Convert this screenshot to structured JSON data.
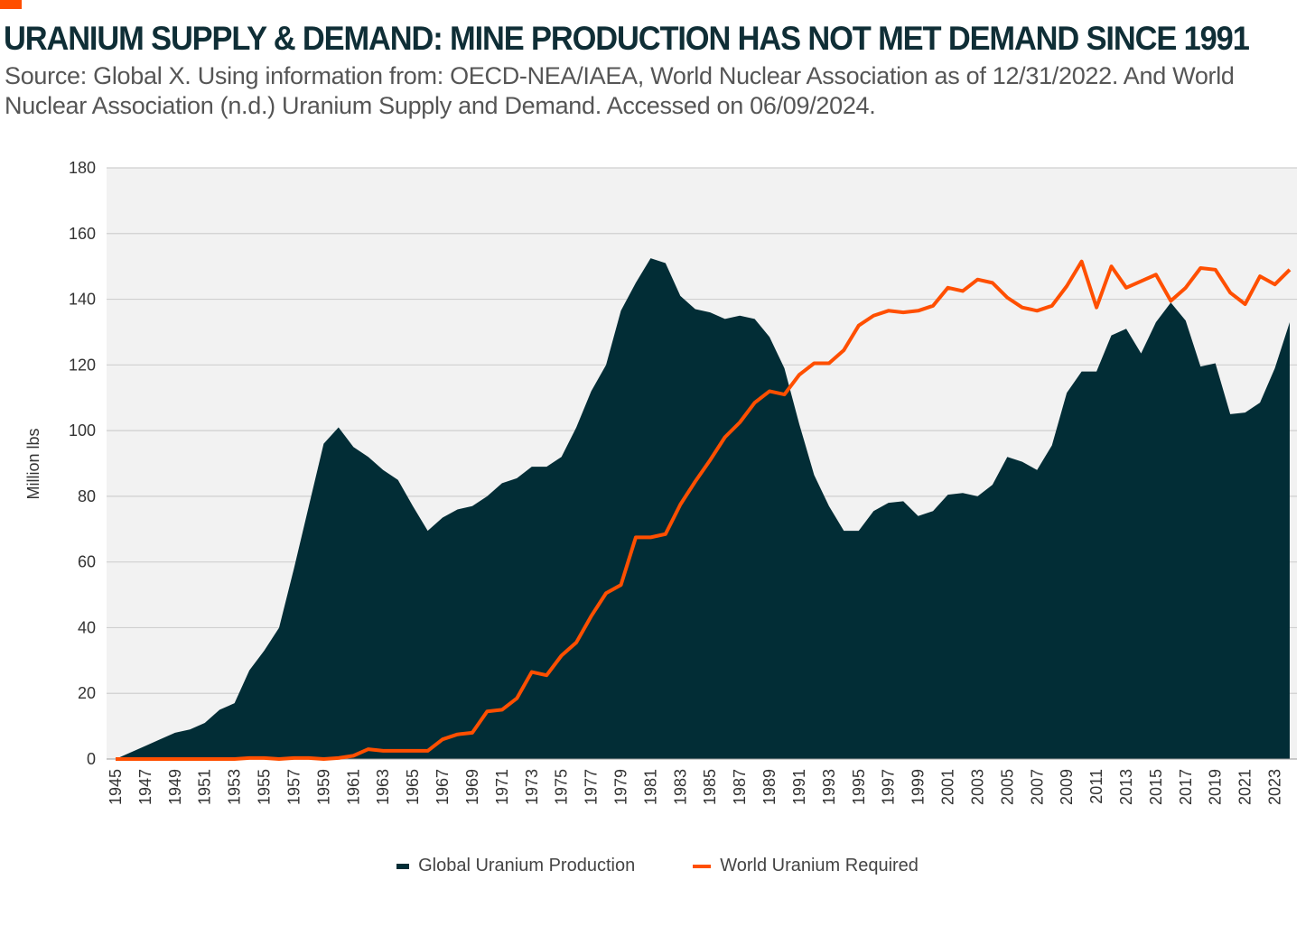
{
  "chart_data": {
    "type": "area",
    "title": "URANIUM SUPPLY & DEMAND: MINE PRODUCTION HAS NOT MET DEMAND SINCE 1991",
    "subtitle": "Source: Global X. Using information from: OECD-NEA/IAEA, World Nuclear Association as of 12/31/2022. And World Nuclear Association (n.d.) Uranium Supply and Demand. Accessed on 06/09/2024.",
    "xlabel": "",
    "ylabel": "Million lbs",
    "ylim": [
      0,
      180
    ],
    "yticks": [
      0,
      20,
      40,
      60,
      80,
      100,
      120,
      140,
      160,
      180
    ],
    "x_start": 1945,
    "x_end": 2024,
    "xtick_step": 2,
    "grid": true,
    "legend_placement": "bottom",
    "colors": {
      "production": "#022d36",
      "required": "#ff4f00",
      "plot_bg": "#f2f2f2"
    },
    "series": [
      {
        "name": "Global Uranium Production",
        "kind": "area",
        "values": [
          0,
          2,
          4,
          6,
          8,
          9,
          11,
          15,
          17,
          27,
          33,
          40,
          58,
          77,
          96,
          101,
          95,
          92,
          88,
          85,
          77,
          69.5,
          73.5,
          76,
          77,
          80,
          84,
          85.5,
          89,
          89,
          92,
          101,
          112,
          120,
          136.5,
          145,
          152.5,
          151,
          141,
          137,
          136,
          134,
          135,
          134,
          128.5,
          119,
          102,
          86.5,
          77,
          69.5,
          69.5,
          75.5,
          78,
          78.5,
          74,
          75.5,
          80.5,
          81,
          80,
          83.5,
          92,
          90.5,
          88,
          95.5,
          111.5,
          118,
          118,
          129,
          131,
          123.5,
          133,
          139,
          133.5,
          119.5,
          120.5,
          105,
          105.5,
          108.5,
          119,
          133
        ]
      },
      {
        "name": "World Uranium Required",
        "kind": "line",
        "values": [
          0,
          0,
          0,
          0,
          0,
          0,
          0,
          0,
          0,
          0.3,
          0.3,
          0,
          0.3,
          0.3,
          0,
          0.3,
          1,
          3,
          2.5,
          2.5,
          2.5,
          2.5,
          6,
          7.5,
          8,
          14.5,
          15,
          18.5,
          26.5,
          25.5,
          31.5,
          35.5,
          43.5,
          50.5,
          53,
          67.5,
          67.5,
          68.5,
          77.5,
          84.5,
          91,
          98,
          102.5,
          108.5,
          112,
          111,
          117,
          120.5,
          120.5,
          124.5,
          132,
          135,
          136.5,
          136,
          136.5,
          138,
          143.5,
          142.5,
          146,
          145,
          140.5,
          137.5,
          136.5,
          138,
          144,
          151.5,
          137.5,
          150,
          143.5,
          145.5,
          147.5,
          139.5,
          143.5,
          149.5,
          149,
          142,
          138.5,
          147,
          144.5,
          149
        ]
      }
    ]
  }
}
